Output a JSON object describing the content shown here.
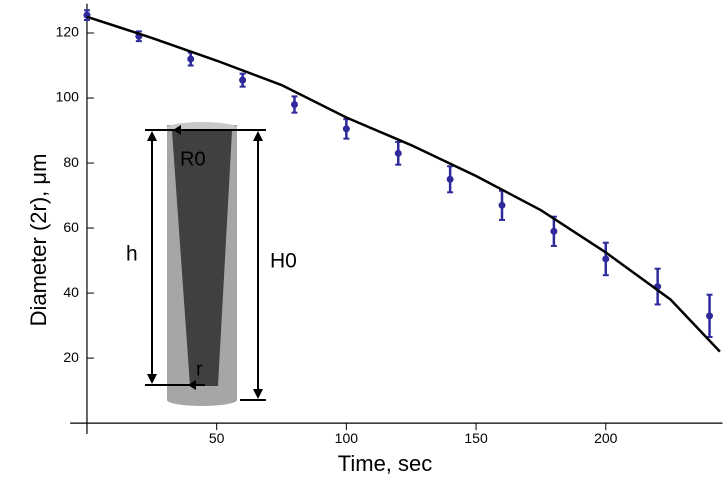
{
  "chart_data": {
    "type": "scatter",
    "x_label": "Time, sec",
    "y_label": "Diameter  (2r), μm",
    "xlim": [
      -6.5,
      245
    ],
    "ylim": [
      -1.5,
      129
    ],
    "xticks": [
      50,
      100,
      150,
      200
    ],
    "yticks": [
      20,
      40,
      60,
      80,
      100,
      120
    ],
    "grid": false,
    "series": [
      {
        "color": "#2e2a9c",
        "x": [
          0,
          20,
          40,
          60,
          80,
          100,
          120,
          140,
          160,
          180,
          200,
          220,
          240
        ],
        "values": [
          125.5,
          119,
          112,
          105.5,
          98,
          90.5,
          83,
          75,
          67,
          59,
          50.5,
          42,
          33
        ],
        "errors": [
          1.5,
          1.5,
          2,
          2,
          2.5,
          3,
          3.5,
          4,
          4.5,
          4.5,
          5,
          5.5,
          6.5
        ]
      },
      {
        "type": "line",
        "color": "#000000",
        "x": [
          0,
          25,
          50,
          75,
          100,
          125,
          150,
          175,
          200,
          225,
          244
        ],
        "values": [
          125,
          118.5,
          111.5,
          104,
          94,
          85.5,
          76,
          65.5,
          52.5,
          38,
          22
        ]
      }
    ],
    "annotations": [
      "R0",
      "h",
      "H0",
      "r"
    ]
  }
}
